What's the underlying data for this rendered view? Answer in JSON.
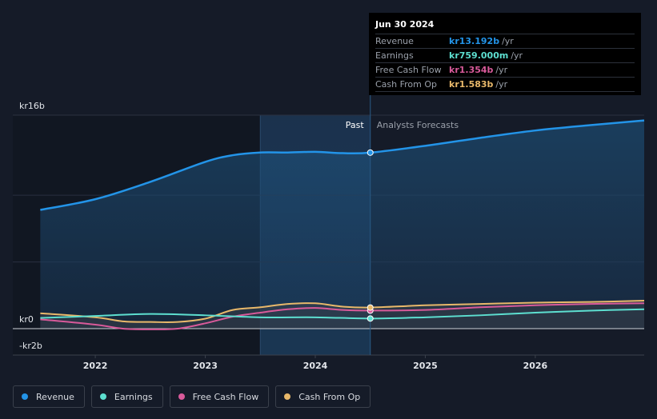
{
  "chart_data": {
    "type": "line",
    "currency": "kr",
    "y_ticks": [
      {
        "label": "kr16b",
        "value": 16
      },
      {
        "label": "kr0",
        "value": 0
      },
      {
        "label": "-kr2b",
        "value": -2
      }
    ],
    "ylim": [
      -2,
      16
    ],
    "x_ticks": [
      {
        "label": "2022",
        "value": 2022.0
      },
      {
        "label": "2023",
        "value": 2023.0
      },
      {
        "label": "2024",
        "value": 2024.0
      },
      {
        "label": "2025",
        "value": 2025.0
      },
      {
        "label": "2026",
        "value": 2026.0
      }
    ],
    "xlim": [
      2021.25,
      2026.99
    ],
    "past_label": "Past",
    "forecast_label": "Analysts Forecasts",
    "past_split": 2024.5,
    "highlight_start": 2023.5,
    "series": [
      {
        "name": "Revenue",
        "color": "#2394e8",
        "fill": true,
        "points": [
          [
            2021.5,
            8.9
          ],
          [
            2022.0,
            9.7
          ],
          [
            2022.5,
            11.0
          ],
          [
            2023.0,
            12.5
          ],
          [
            2023.25,
            13.0
          ],
          [
            2023.5,
            13.2
          ],
          [
            2023.75,
            13.2
          ],
          [
            2024.0,
            13.25
          ],
          [
            2024.25,
            13.15
          ],
          [
            2024.5,
            13.192
          ],
          [
            2025.0,
            13.7
          ],
          [
            2025.5,
            14.3
          ],
          [
            2026.0,
            14.85
          ],
          [
            2026.5,
            15.25
          ],
          [
            2026.99,
            15.6
          ]
        ]
      },
      {
        "name": "Earnings",
        "color": "#5ddfd0",
        "fill": false,
        "points": [
          [
            2021.5,
            0.8
          ],
          [
            2022.0,
            0.95
          ],
          [
            2022.5,
            1.1
          ],
          [
            2023.0,
            1.0
          ],
          [
            2023.5,
            0.85
          ],
          [
            2024.0,
            0.85
          ],
          [
            2024.5,
            0.759
          ],
          [
            2025.0,
            0.85
          ],
          [
            2025.5,
            1.0
          ],
          [
            2026.0,
            1.2
          ],
          [
            2026.5,
            1.35
          ],
          [
            2026.99,
            1.45
          ]
        ]
      },
      {
        "name": "Free Cash Flow",
        "color": "#d85a9a",
        "fill": false,
        "points": [
          [
            2021.5,
            0.7
          ],
          [
            2022.0,
            0.3
          ],
          [
            2022.25,
            0.0
          ],
          [
            2022.5,
            -0.05
          ],
          [
            2022.75,
            0.0
          ],
          [
            2023.0,
            0.4
          ],
          [
            2023.25,
            0.9
          ],
          [
            2023.5,
            1.2
          ],
          [
            2023.75,
            1.45
          ],
          [
            2024.0,
            1.55
          ],
          [
            2024.25,
            1.4
          ],
          [
            2024.5,
            1.354
          ],
          [
            2025.0,
            1.4
          ],
          [
            2025.5,
            1.6
          ],
          [
            2026.0,
            1.75
          ],
          [
            2026.5,
            1.85
          ],
          [
            2026.99,
            1.9
          ]
        ]
      },
      {
        "name": "Cash From Op",
        "color": "#e8b86a",
        "fill": false,
        "points": [
          [
            2021.5,
            1.15
          ],
          [
            2022.0,
            0.85
          ],
          [
            2022.25,
            0.55
          ],
          [
            2022.5,
            0.5
          ],
          [
            2022.75,
            0.5
          ],
          [
            2023.0,
            0.75
          ],
          [
            2023.25,
            1.4
          ],
          [
            2023.5,
            1.6
          ],
          [
            2023.75,
            1.85
          ],
          [
            2024.0,
            1.9
          ],
          [
            2024.25,
            1.65
          ],
          [
            2024.5,
            1.583
          ],
          [
            2025.0,
            1.75
          ],
          [
            2025.5,
            1.85
          ],
          [
            2026.0,
            1.95
          ],
          [
            2026.5,
            2.0
          ],
          [
            2026.99,
            2.1
          ]
        ]
      }
    ]
  },
  "tooltip": {
    "date": "Jun 30 2024",
    "unit": "/yr",
    "rows": [
      {
        "label": "Revenue",
        "value": "kr13.192b",
        "color": "#2394e8"
      },
      {
        "label": "Earnings",
        "value": "kr759.000m",
        "color": "#5ddfd0"
      },
      {
        "label": "Free Cash Flow",
        "value": "kr1.354b",
        "color": "#d85a9a"
      },
      {
        "label": "Cash From Op",
        "value": "kr1.583b",
        "color": "#e8b86a"
      }
    ]
  },
  "legend": [
    {
      "label": "Revenue",
      "color": "#2394e8"
    },
    {
      "label": "Earnings",
      "color": "#5ddfd0"
    },
    {
      "label": "Free Cash Flow",
      "color": "#d85a9a"
    },
    {
      "label": "Cash From Op",
      "color": "#e8b86a"
    }
  ]
}
